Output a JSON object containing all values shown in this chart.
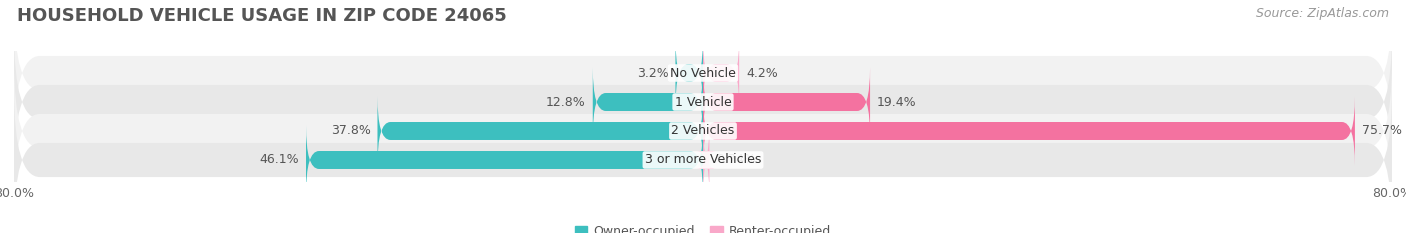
{
  "title": "HOUSEHOLD VEHICLE USAGE IN ZIP CODE 24065",
  "source": "Source: ZipAtlas.com",
  "categories": [
    "No Vehicle",
    "1 Vehicle",
    "2 Vehicles",
    "3 or more Vehicles"
  ],
  "owner_values": [
    3.2,
    12.8,
    37.8,
    46.1
  ],
  "renter_values": [
    4.2,
    19.4,
    75.7,
    0.74
  ],
  "owner_color": "#3DBFBF",
  "renter_color": "#F472A0",
  "renter_color_light": "#F9A8C9",
  "row_colors": [
    "#F2F2F2",
    "#E8E8E8",
    "#F2F2F2",
    "#E8E8E8"
  ],
  "xlim_left": -80,
  "xlim_right": 80,
  "legend_labels": [
    "Owner-occupied",
    "Renter-occupied"
  ],
  "title_fontsize": 13,
  "source_fontsize": 9,
  "value_fontsize": 9,
  "category_fontsize": 9,
  "axis_fontsize": 9,
  "bar_height": 0.62
}
